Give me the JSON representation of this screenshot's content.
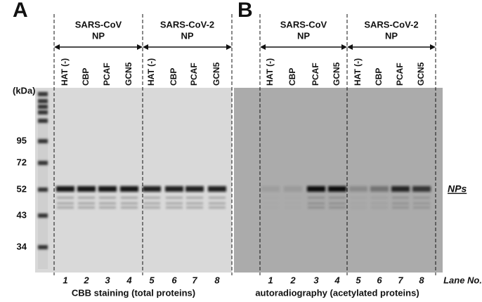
{
  "panels": [
    {
      "letter": "A",
      "groups": [
        {
          "name": "SARS-CoV",
          "sub": "NP"
        },
        {
          "name": "SARS-CoV-2",
          "sub": "NP"
        }
      ],
      "lanes": [
        "HAT (-)",
        "CBP",
        "PCAF",
        "GCN5",
        "HAT (-)",
        "CBP",
        "PCAF",
        "GCN5"
      ],
      "lane_numbers": [
        "1",
        "2",
        "3",
        "4",
        "5",
        "6",
        "7",
        "8"
      ],
      "caption": "CBB staining (total proteins)"
    },
    {
      "letter": "B",
      "groups": [
        {
          "name": "SARS-CoV",
          "sub": "NP"
        },
        {
          "name": "SARS-CoV-2",
          "sub": "NP"
        }
      ],
      "lanes": [
        "HAT (-)",
        "CBP",
        "PCAF",
        "GCN5",
        "HAT (-)",
        "CBP",
        "PCAF",
        "GCN5"
      ],
      "lane_numbers": [
        "1",
        "2",
        "3",
        "4",
        "5",
        "6",
        "7",
        "8"
      ],
      "caption": "autoradiography (acetylated proteins)"
    }
  ],
  "marker": {
    "unit": "(kDa)",
    "labels": [
      "95",
      "72",
      "52",
      "43",
      "34"
    ]
  },
  "band_label": "NPs",
  "lane_axis_label": "Lane No."
}
